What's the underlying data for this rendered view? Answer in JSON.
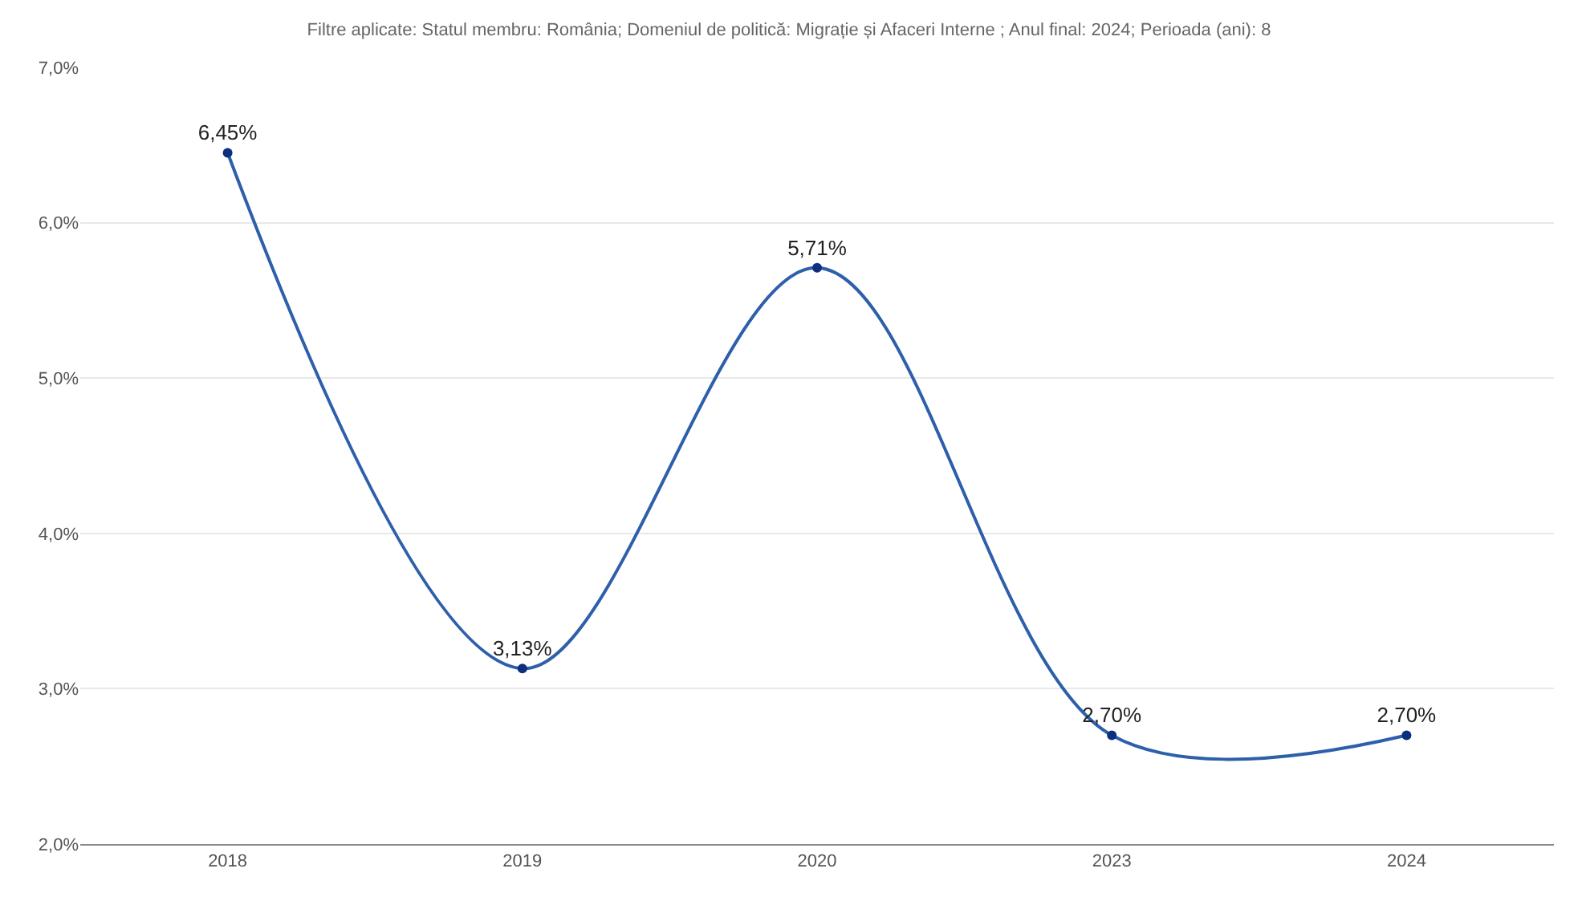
{
  "chart_data": {
    "type": "line",
    "subtitle": "Filtre aplicate: Statul membru: România; Domeniul de politică: Migrație și Afaceri Interne ; Anul final: 2024; Perioada (ani): 8",
    "categories": [
      "2018",
      "2019",
      "2020",
      "2023",
      "2024"
    ],
    "series": [
      {
        "color": "#2e5faa",
        "values": [
          6.45,
          3.13,
          5.71,
          2.7,
          2.7
        ],
        "value_labels": [
          "6,45%",
          "3,13%",
          "5,71%",
          "2,70%",
          "2,70%"
        ]
      }
    ],
    "ylim": [
      2.0,
      7.0
    ],
    "yticks": [
      {
        "value": 2.0,
        "label": "2,0%"
      },
      {
        "value": 3.0,
        "label": "3,0%"
      },
      {
        "value": 4.0,
        "label": "4,0%"
      },
      {
        "value": 5.0,
        "label": "5,0%"
      },
      {
        "value": 6.0,
        "label": "6,0%"
      },
      {
        "value": 7.0,
        "label": "7,0%"
      }
    ],
    "grid": "y",
    "marker": "circle",
    "line_style": "solid",
    "legend": false
  }
}
